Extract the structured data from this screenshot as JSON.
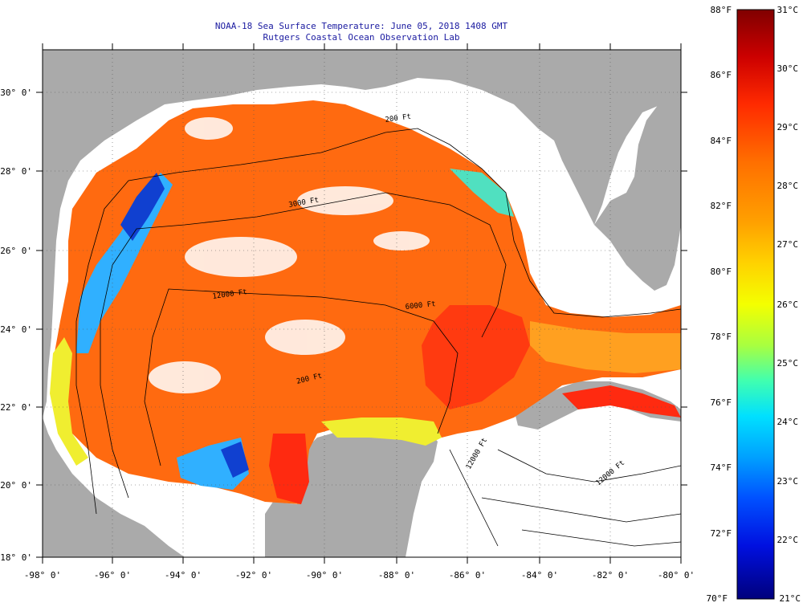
{
  "title": {
    "line1": "NOAA-18 Sea Surface Temperature:  June 05, 2018 1408 GMT",
    "line2": "Rutgers Coastal Ocean Observation Lab"
  },
  "axes": {
    "x_ticks": [
      "-98° 0'",
      "-96° 0'",
      "-94° 0'",
      "-92° 0'",
      "-90° 0'",
      "-88° 0'",
      "-86° 0'",
      "-84° 0'",
      "-82° 0'",
      "-80° 0'"
    ],
    "y_ticks": [
      "30° 0'",
      "28° 0'",
      "26° 0'",
      "24° 0'",
      "22° 0'",
      "20° 0'",
      "18° 0'"
    ]
  },
  "contour_labels": [
    "200 Ft",
    "3000 Ft",
    "12000 Ft",
    "6000 Ft",
    "200 Ft",
    "12000 Ft",
    "12000 Ft"
  ],
  "colorbar": {
    "fahrenheit": [
      "88°F",
      "86°F",
      "84°F",
      "82°F",
      "80°F",
      "78°F",
      "76°F",
      "74°F",
      "72°F",
      "70°F"
    ],
    "celsius": [
      "31°C",
      "30°C",
      "29°C",
      "28°C",
      "27°C",
      "26°C",
      "25°C",
      "24°C",
      "23°C",
      "22°C",
      "21°C"
    ],
    "colors": [
      "#800000",
      "#cc0000",
      "#ff2a00",
      "#ff7000",
      "#ffa000",
      "#ffd200",
      "#f4ff00",
      "#a8ff40",
      "#40ffb0",
      "#00e0ff",
      "#00a0ff",
      "#0050ff",
      "#0010e0",
      "#00007c"
    ]
  },
  "colors": {
    "land": "#aaaaaa",
    "cloud": "#ffffff",
    "warm": "#ff6a10",
    "hot": "#ff2a10",
    "cool": "#30b0ff",
    "cold": "#1040d0",
    "yellow": "#f0ee30",
    "title": "#1a1aa0"
  }
}
